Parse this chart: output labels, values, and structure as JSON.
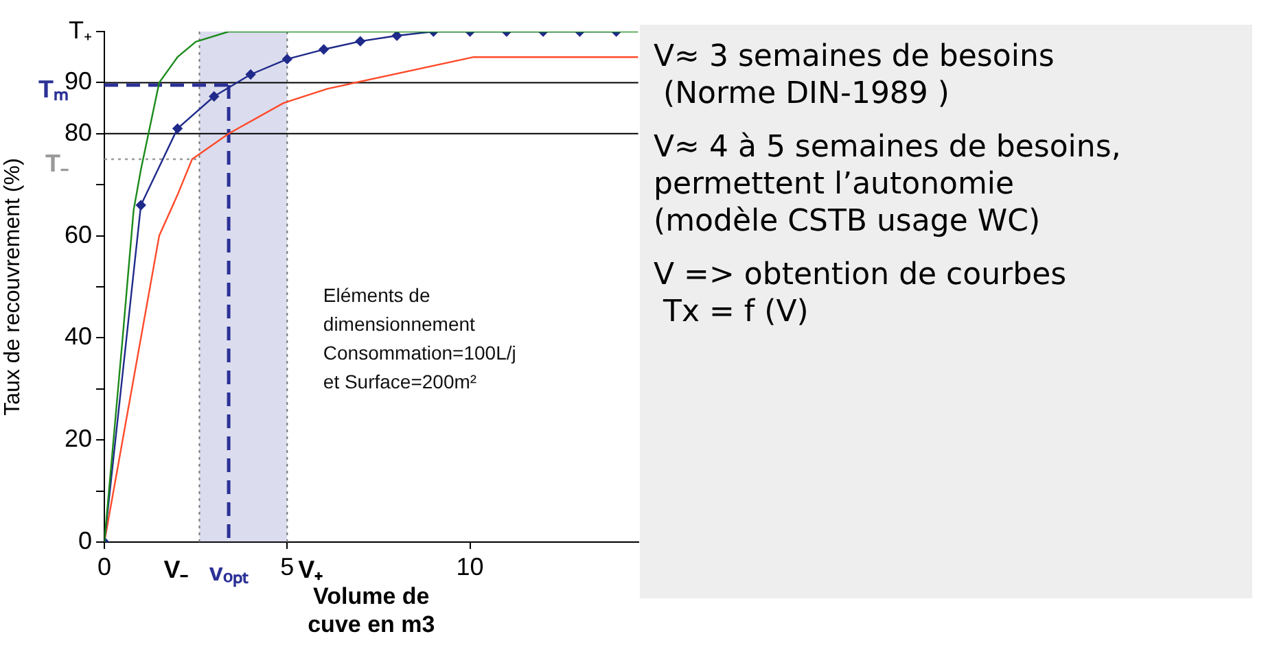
{
  "chart_data": {
    "type": "line",
    "xlabel": "Volume de\ncuve en m3",
    "ylabel": "Taux de recouvrement (%)",
    "xlim": [
      0,
      14.6
    ],
    "xticks": [
      0,
      5,
      10
    ],
    "ylim": [
      0,
      100
    ],
    "yticks": [
      0,
      {
        "value": 10,
        "label": null
      },
      20,
      {
        "value": 30,
        "label": null
      },
      40,
      {
        "value": 50,
        "label": null
      },
      60,
      {
        "value": 70,
        "label": null
      },
      80,
      90,
      {
        "value": 100,
        "label": "T₊"
      }
    ],
    "series": [
      {
        "color": "#1a8a1a",
        "marker": "none",
        "line_style": "solid",
        "x": [
          0,
          0.5,
          0.8,
          1,
          1.5,
          2,
          2.5,
          3.4,
          14.6
        ],
        "values": [
          0,
          40,
          65,
          73,
          90,
          95,
          98,
          100,
          100
        ]
      },
      {
        "color": "#1f2a8a",
        "marker": "diamond",
        "line_style": "solid",
        "x": [
          0,
          1,
          2,
          3,
          4,
          5,
          6,
          7,
          8,
          9,
          10,
          11,
          12,
          13,
          14
        ],
        "values": [
          0,
          66,
          81,
          87.3,
          91.6,
          94.6,
          96.5,
          98.1,
          99.2,
          100,
          100,
          100,
          100,
          100,
          100
        ]
      },
      {
        "color": "#ff4a2a",
        "marker": "none",
        "line_style": "solid",
        "x": [
          0,
          1.5,
          2,
          2.4,
          3.4,
          4.9,
          6.1,
          10.1,
          14.6
        ],
        "values": [
          0,
          60,
          68,
          75,
          80,
          86,
          88.8,
          95,
          95
        ]
      },
      {
        "name": "Tₘ",
        "color": "#2b3196",
        "marker": "none",
        "line_style": "dashed",
        "x": [
          0,
          3.4
        ],
        "values": [
          89.5,
          89.5
        ]
      },
      {
        "name": "vₒₚₜ",
        "color": "#2b3196",
        "marker": "none",
        "line_style": "dashed",
        "x": [
          3.4,
          3.4
        ],
        "values": [
          89.5,
          0
        ]
      },
      {
        "name": "T₋",
        "color": "#999999",
        "marker": "none",
        "line_style": "dotted",
        "x": [
          0,
          2.6
        ],
        "values": [
          75,
          75
        ]
      }
    ],
    "ref_lines": [
      {
        "axis": "y",
        "value": 80,
        "color": "#000000",
        "line_style": "solid"
      },
      {
        "axis": "y",
        "value": 90,
        "color": "#000000",
        "line_style": "solid"
      },
      {
        "axis": "x",
        "value": 2.6,
        "label": "V₋",
        "color": "#777777",
        "line_style": "dotted"
      },
      {
        "axis": "x",
        "value": 5,
        "label": "V₊",
        "color": "#777777",
        "line_style": "dotted"
      }
    ],
    "bands": [
      {
        "axis": "x",
        "from": 2.6,
        "to": 5,
        "color": "#5a5fb0"
      }
    ],
    "annotations": [
      "Eléments de\ndimensionnement\nConsommation=100L/j\net Surface=200m²",
      "V≈ 3 semaines de besoins\n (Norme DIN-1989 )",
      "V≈ 4 à 5 semaines de besoins,\npermettent l’autonomie\n(modèle CSTB usage WC)",
      "V => obtention de courbes\n Tx = f (V)"
    ],
    "grid": false,
    "legend": false
  }
}
